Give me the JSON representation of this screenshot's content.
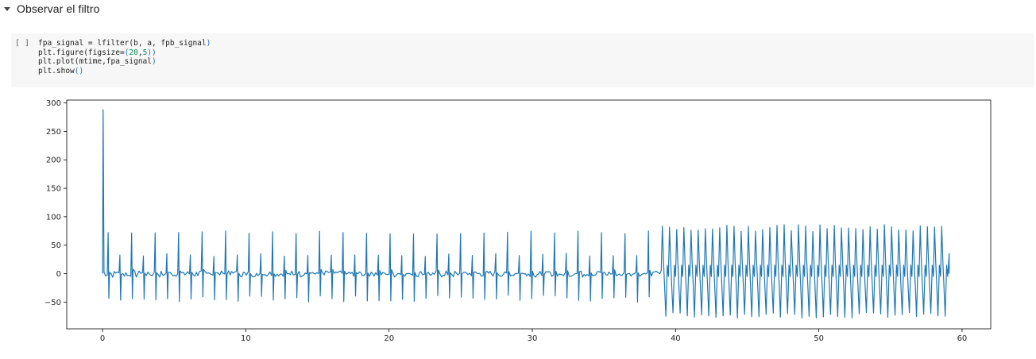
{
  "section": {
    "title": "Observar el filtro",
    "caret_icon": "caret-down-icon"
  },
  "cell": {
    "run_label": "[ ]",
    "code_lines": [
      {
        "tokens": [
          {
            "t": "fpa_signal = lfilter(b, a, fpb_signal",
            "c": ""
          },
          {
            "t": ")",
            "c": "p"
          }
        ]
      },
      {
        "tokens": [
          {
            "t": "plt.figure(figsize=",
            "c": ""
          },
          {
            "t": "(",
            "c": "p"
          },
          {
            "t": "20",
            "c": "n"
          },
          {
            "t": ",",
            "c": ""
          },
          {
            "t": "5",
            "c": "n"
          },
          {
            "t": "))",
            "c": "p"
          }
        ]
      },
      {
        "tokens": [
          {
            "t": "plt.plot(mtime,fpa_signal",
            "c": ""
          },
          {
            "t": ")",
            "c": "p"
          }
        ]
      },
      {
        "tokens": [
          {
            "t": "plt.show",
            "c": ""
          },
          {
            "t": "()",
            "c": "p"
          }
        ]
      }
    ]
  },
  "chart_data": {
    "type": "line",
    "xlim": [
      -2.5,
      62
    ],
    "ylim": [
      -97,
      305
    ],
    "x_ticks": [
      0,
      10,
      20,
      30,
      40,
      50,
      60
    ],
    "y_ticks": [
      -50,
      0,
      50,
      100,
      150,
      200,
      250,
      300
    ],
    "grid": false,
    "legend": "none",
    "series": [
      {
        "color": "#1f77b4",
        "x_range": [
          0,
          59.1
        ],
        "initial_spike": 288,
        "segments": [
          {
            "x_start": 0.15,
            "x_end": 39.0,
            "beat_period": 0.82,
            "peak_high": 75,
            "peak_low": 30,
            "trough": -50
          },
          {
            "x_start": 39.0,
            "x_end": 59.1,
            "beat_period": 0.5,
            "peak": 86,
            "trough": -78
          }
        ]
      }
    ]
  }
}
